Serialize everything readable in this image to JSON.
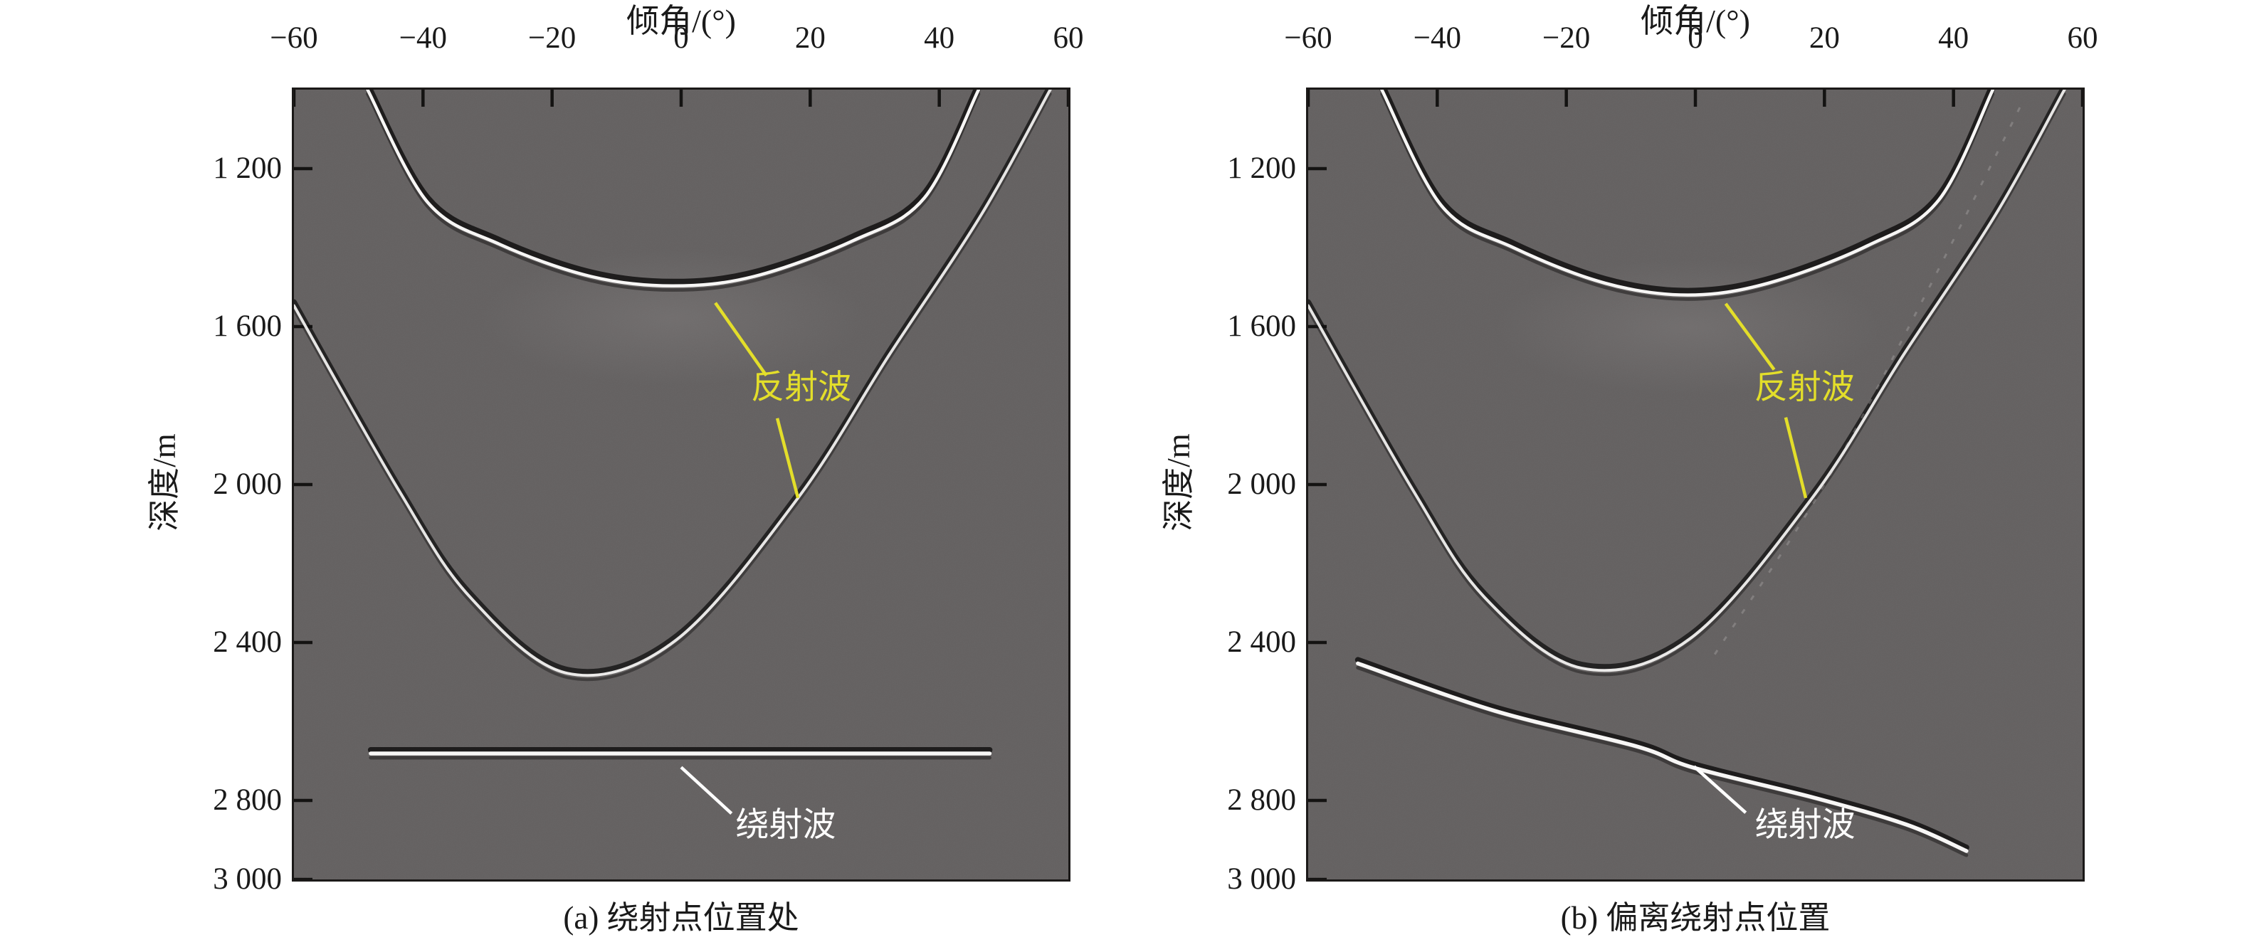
{
  "figure": {
    "plot_bg": "#636060",
    "frame_color": "#1b1918",
    "text_color": "#1a1a1a",
    "accent_yellow": "#e3de2a",
    "accent_white": "#ffffff"
  },
  "panels": [
    {
      "id": "a",
      "title": "倾角/(°)",
      "ylabel": "深度/m",
      "caption": "(a) 绕射点位置处",
      "x_tick_labels": [
        "−60",
        "−40",
        "−20",
        "0",
        "20",
        "40",
        "60"
      ],
      "y_tick_labels": [
        "1 200",
        "1 600",
        "2 000",
        "2 400",
        "2 800",
        "3 000"
      ],
      "reflection_label": "反射波",
      "diffraction_label": "绕射波"
    },
    {
      "id": "b",
      "title": "倾角/(°)",
      "ylabel": "深度/m",
      "caption": "(b) 偏离绕射点位置",
      "x_tick_labels": [
        "−60",
        "−40",
        "−20",
        "0",
        "20",
        "40",
        "60"
      ],
      "y_tick_labels": [
        "1 200",
        "1 600",
        "2 000",
        "2 400",
        "2 800",
        "3 000"
      ],
      "reflection_label": "反射波",
      "diffraction_label": "绕射波"
    }
  ],
  "chart_data": [
    {
      "panel": "a",
      "type": "heatmap",
      "subtype": "seismic_dip_angle_gather",
      "title": "倾角/(°)",
      "xlabel": "倾角/(°)",
      "ylabel": "深度/m",
      "xlim": [
        -60,
        60
      ],
      "ylim_depth": [
        1000,
        3000
      ],
      "x_ticks": [
        -60,
        -40,
        -20,
        0,
        20,
        40,
        60
      ],
      "y_ticks": [
        1200,
        1600,
        2000,
        2400,
        2800,
        3000
      ],
      "grid": false,
      "events": [
        {
          "name": "reflection_shallow",
          "kind": "reflection",
          "style": "strong",
          "points": [
            [
              -48.6,
              1000
            ],
            [
              -39.3,
              1285
            ],
            [
              -28.2,
              1391
            ],
            [
              -14,
              1473
            ],
            [
              -1.3,
              1497
            ],
            [
              11.3,
              1473
            ],
            [
              26.7,
              1382
            ],
            [
              37.7,
              1274
            ],
            [
              46.1,
              1000
            ]
          ]
        },
        {
          "name": "reflection_deep",
          "kind": "reflection",
          "style": "medium",
          "points": [
            [
              -60,
              1547
            ],
            [
              -43.7,
              2016
            ],
            [
              -32.7,
              2285
            ],
            [
              -17.6,
              2478
            ],
            [
              -0.8,
              2394
            ],
            [
              18.1,
              2034
            ],
            [
              32.2,
              1673
            ],
            [
              46.5,
              1317
            ],
            [
              57.2,
              1000
            ]
          ]
        },
        {
          "name": "diffraction_flat",
          "kind": "diffraction",
          "style": "band",
          "points": [
            [
              -48.1,
              2681
            ],
            [
              0,
              2681
            ],
            [
              47.8,
              2681
            ]
          ]
        }
      ],
      "annotations": [
        {
          "name": "reflection",
          "text": "反射波",
          "color": "#e3de2a",
          "pos": [
            18.6,
            1763
          ],
          "leaders": [
            [
              [
                5.3,
                1540
              ],
              [
                13.2,
                1724
              ]
            ],
            [
              [
                14.9,
                1832
              ],
              [
                18.1,
                2034
              ]
            ]
          ]
        },
        {
          "name": "diffraction",
          "text": "绕射波",
          "color": "#ffffff",
          "pos": [
            16.2,
            2871
          ],
          "leaders": [
            [
              [
                0,
                2716
              ],
              [
                7.8,
                2833
              ]
            ]
          ]
        }
      ]
    },
    {
      "panel": "b",
      "type": "heatmap",
      "subtype": "seismic_dip_angle_gather",
      "title": "倾角/(°)",
      "xlabel": "倾角/(°)",
      "ylabel": "深度/m",
      "xlim": [
        -60,
        60
      ],
      "ylim_depth": [
        1000,
        3000
      ],
      "x_ticks": [
        -60,
        -40,
        -20,
        0,
        20,
        40,
        60
      ],
      "y_ticks": [
        1200,
        1600,
        2000,
        2400,
        2800,
        3000
      ],
      "grid": false,
      "events": [
        {
          "name": "reflection_shallow",
          "kind": "reflection",
          "style": "strong",
          "points": [
            [
              -48.6,
              1000
            ],
            [
              -39.3,
              1295
            ],
            [
              -28.2,
              1400
            ],
            [
              -14,
              1490
            ],
            [
              -1.2,
              1520
            ],
            [
              11.3,
              1490
            ],
            [
              26.7,
              1395
            ],
            [
              37.7,
              1280
            ],
            [
              46.1,
              1000
            ]
          ]
        },
        {
          "name": "reflection_deep",
          "kind": "reflection",
          "style": "medium",
          "points": [
            [
              -60,
              1547
            ],
            [
              -43.7,
              2016
            ],
            [
              -32.7,
              2285
            ],
            [
              -17.6,
              2465
            ],
            [
              -0.8,
              2390
            ],
            [
              18.1,
              2034
            ],
            [
              32.2,
              1673
            ],
            [
              46.5,
              1317
            ],
            [
              57.2,
              1000
            ]
          ]
        },
        {
          "name": "diffraction_sloping",
          "kind": "diffraction",
          "style": "band",
          "points": [
            [
              -52.3,
              2453
            ],
            [
              -31.1,
              2573
            ],
            [
              -9.1,
              2663
            ],
            [
              -0.3,
              2717
            ],
            [
              18.4,
              2793
            ],
            [
              32.7,
              2861
            ],
            [
              42.0,
              2928
            ]
          ]
        },
        {
          "name": "migration_ghost",
          "kind": "artifact",
          "style": "faint_dashed",
          "points": [
            [
              3,
              2430
            ],
            [
              20,
              2000
            ],
            [
              35,
              1540
            ],
            [
              48,
              1120
            ],
            [
              51,
              1020
            ]
          ]
        }
      ],
      "annotations": [
        {
          "name": "reflection",
          "text": "反射波",
          "color": "#e3de2a",
          "pos": [
            16.9,
            1763
          ],
          "leaders": [
            [
              [
                4.7,
                1542
              ],
              [
                12.2,
                1709
              ]
            ],
            [
              [
                14,
                1830
              ],
              [
                17.1,
                2034
              ]
            ]
          ]
        },
        {
          "name": "diffraction",
          "text": "绕射波",
          "color": "#ffffff",
          "pos": [
            17.0,
            2871
          ],
          "leaders": [
            [
              [
                -0.2,
                2714
              ],
              [
                7.8,
                2831
              ]
            ]
          ]
        }
      ]
    }
  ]
}
